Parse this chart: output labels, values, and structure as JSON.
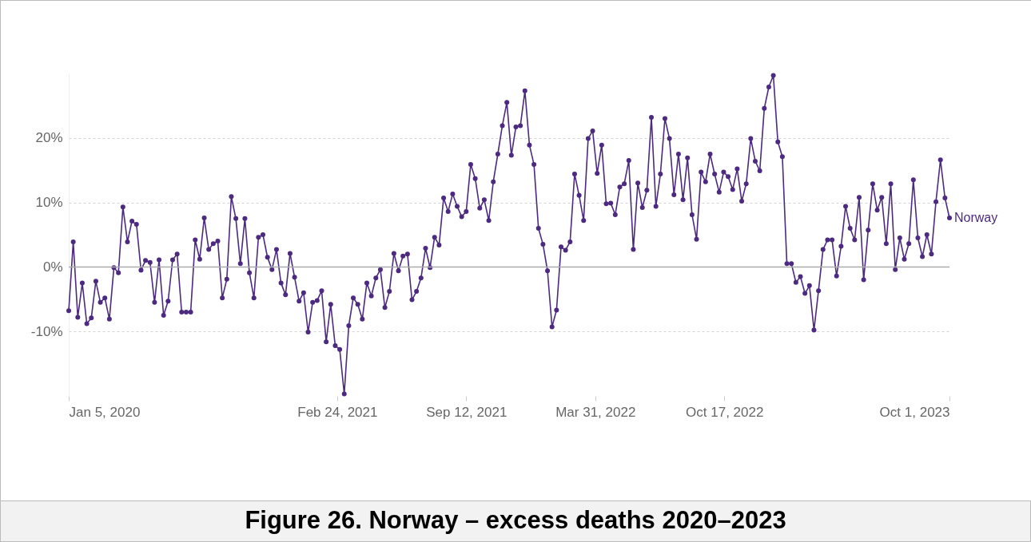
{
  "chart_data": {
    "type": "line",
    "title": "Figure 26. Norway – excess deaths 2020–2023",
    "x": [
      "2020-01-05",
      "2020-01-12",
      "2020-01-19",
      "2020-01-26",
      "2020-02-02",
      "2020-02-09",
      "2020-02-16",
      "2020-02-23",
      "2020-03-01",
      "2020-03-08",
      "2020-03-15",
      "2020-03-22",
      "2020-03-29",
      "2020-04-05",
      "2020-04-12",
      "2020-04-19",
      "2020-04-26",
      "2020-05-03",
      "2020-05-10",
      "2020-05-17",
      "2020-05-24",
      "2020-05-31",
      "2020-06-07",
      "2020-06-14",
      "2020-06-21",
      "2020-06-28",
      "2020-07-05",
      "2020-07-12",
      "2020-07-19",
      "2020-07-26",
      "2020-08-02",
      "2020-08-09",
      "2020-08-16",
      "2020-08-23",
      "2020-08-30",
      "2020-09-06",
      "2020-09-13",
      "2020-09-20",
      "2020-09-27",
      "2020-10-04",
      "2020-10-11",
      "2020-10-18",
      "2020-10-25",
      "2020-11-01",
      "2020-11-08",
      "2020-11-15",
      "2020-11-22",
      "2020-11-29",
      "2020-12-06",
      "2020-12-13",
      "2020-12-20",
      "2020-12-27",
      "2021-01-03",
      "2021-01-10",
      "2021-01-17",
      "2021-01-24",
      "2021-01-31",
      "2021-02-07",
      "2021-02-14",
      "2021-02-21",
      "2021-02-28",
      "2021-03-07",
      "2021-03-14",
      "2021-03-21",
      "2021-03-28",
      "2021-04-04",
      "2021-04-11",
      "2021-04-18",
      "2021-04-25",
      "2021-05-02",
      "2021-05-09",
      "2021-05-16",
      "2021-05-23",
      "2021-05-30",
      "2021-06-06",
      "2021-06-13",
      "2021-06-20",
      "2021-06-27",
      "2021-07-04",
      "2021-07-11",
      "2021-07-18",
      "2021-07-25",
      "2021-08-01",
      "2021-08-08",
      "2021-08-15",
      "2021-08-22",
      "2021-08-29",
      "2021-09-05",
      "2021-09-12",
      "2021-09-19",
      "2021-09-26",
      "2021-10-03",
      "2021-10-10",
      "2021-10-17",
      "2021-10-24",
      "2021-10-31",
      "2021-11-07",
      "2021-11-14",
      "2021-11-21",
      "2021-11-28",
      "2021-12-05",
      "2021-12-12",
      "2021-12-19",
      "2021-12-26",
      "2022-01-02",
      "2022-01-09",
      "2022-01-16",
      "2022-01-23",
      "2022-01-30",
      "2022-02-06",
      "2022-02-13",
      "2022-02-20",
      "2022-02-27",
      "2022-03-06",
      "2022-03-13",
      "2022-03-20",
      "2022-03-27",
      "2022-04-03",
      "2022-04-10",
      "2022-04-17",
      "2022-04-24",
      "2022-05-01",
      "2022-05-08",
      "2022-05-15",
      "2022-05-22",
      "2022-05-29",
      "2022-06-05",
      "2022-06-12",
      "2022-06-19",
      "2022-06-26",
      "2022-07-03",
      "2022-07-10",
      "2022-07-17",
      "2022-07-24",
      "2022-07-31",
      "2022-08-07",
      "2022-08-14",
      "2022-08-21",
      "2022-08-28",
      "2022-09-04",
      "2022-09-11",
      "2022-09-18",
      "2022-09-25",
      "2022-10-02",
      "2022-10-09",
      "2022-10-16",
      "2022-10-23",
      "2022-10-30",
      "2022-11-06",
      "2022-11-13",
      "2022-11-20",
      "2022-11-27",
      "2022-12-04",
      "2022-12-11",
      "2022-12-18",
      "2022-12-25",
      "2023-01-01",
      "2023-01-08",
      "2023-01-15",
      "2023-01-22",
      "2023-01-29",
      "2023-02-05",
      "2023-02-12",
      "2023-02-19",
      "2023-02-26",
      "2023-03-05",
      "2023-03-12",
      "2023-03-19",
      "2023-03-26",
      "2023-04-02",
      "2023-04-09",
      "2023-04-16",
      "2023-04-23",
      "2023-04-30",
      "2023-05-07",
      "2023-05-14",
      "2023-05-21",
      "2023-05-28",
      "2023-06-04",
      "2023-06-11",
      "2023-06-18",
      "2023-06-25",
      "2023-07-02",
      "2023-07-09",
      "2023-07-16",
      "2023-07-23",
      "2023-07-30",
      "2023-08-06",
      "2023-08-13",
      "2023-08-20",
      "2023-08-27",
      "2023-09-03",
      "2023-09-10",
      "2023-09-17",
      "2023-09-24",
      "2023-10-01"
    ],
    "series": [
      {
        "name": "Norway",
        "color": "#4b2a80",
        "values": [
          -6.8,
          3.9,
          -7.8,
          -2.5,
          -8.8,
          -7.9,
          -2.2,
          -5.5,
          -4.8,
          -8.1,
          -0.1,
          -0.9,
          9.3,
          3.9,
          7.1,
          6.6,
          -0.5,
          1.0,
          0.7,
          -5.5,
          1.1,
          -7.5,
          -5.3,
          1.1,
          2.0,
          -7.0,
          -7.0,
          -7.0,
          4.2,
          1.2,
          7.6,
          2.7,
          3.6,
          4.0,
          -4.8,
          -1.9,
          10.9,
          7.5,
          0.5,
          7.5,
          -0.9,
          -4.8,
          4.6,
          5.0,
          1.5,
          -0.4,
          2.7,
          -2.5,
          -4.3,
          2.1,
          -1.6,
          -5.3,
          -4.0,
          -10.1,
          -5.5,
          -5.2,
          -3.7,
          -11.6,
          -5.8,
          -12.2,
          -12.8,
          -19.7,
          -9.1,
          -4.8,
          -5.8,
          -8.1,
          -2.5,
          -4.5,
          -1.7,
          -0.4,
          -6.3,
          -3.8,
          2.1,
          -0.6,
          1.7,
          2.0,
          -5.1,
          -3.8,
          -1.7,
          2.9,
          -0.1,
          4.6,
          3.4,
          10.7,
          8.6,
          11.3,
          9.4,
          7.8,
          8.6,
          15.9,
          13.7,
          9.1,
          10.4,
          7.2,
          13.2,
          17.5,
          21.9,
          25.5,
          17.3,
          21.7,
          21.9,
          27.3,
          18.9,
          15.9,
          6.0,
          3.5,
          -0.6,
          -9.3,
          -6.7,
          3.1,
          2.6,
          3.9,
          14.4,
          11.1,
          7.2,
          19.9,
          21.1,
          14.5,
          18.9,
          9.8,
          9.9,
          8.1,
          12.4,
          12.9,
          16.5,
          2.7,
          13.0,
          9.2,
          11.9,
          23.2,
          9.4,
          14.4,
          23.0,
          19.9,
          11.2,
          17.5,
          10.4,
          16.9,
          8.1,
          4.3,
          14.7,
          13.2,
          17.5,
          14.4,
          11.6,
          14.7,
          14.0,
          12.0,
          15.2,
          10.2,
          12.9,
          19.9,
          16.4,
          14.9,
          24.6,
          27.9,
          29.7,
          19.4,
          17.1,
          0.5,
          0.5,
          -2.4,
          -1.5,
          -4.1,
          -2.9,
          -9.8,
          -3.7,
          2.7,
          4.2,
          4.2,
          -1.4,
          3.2,
          9.4,
          6.0,
          4.2,
          10.8,
          -2.0,
          5.7,
          12.9,
          8.8,
          10.8,
          3.6,
          12.9,
          -0.4,
          4.5,
          1.2,
          3.6,
          13.5,
          4.5,
          1.6,
          5.0,
          2.0,
          10.1,
          16.6,
          10.7,
          7.6
        ]
      }
    ],
    "xlim": [
      "2020-01-05",
      "2023-10-01"
    ],
    "xticks": [
      {
        "value": "2020-01-05",
        "label": "Jan 5, 2020"
      },
      {
        "value": "2021-02-24",
        "label": "Feb 24, 2021"
      },
      {
        "value": "2021-09-12",
        "label": "Sep 12, 2021"
      },
      {
        "value": "2022-03-31",
        "label": "Mar 31, 2022"
      },
      {
        "value": "2022-10-17",
        "label": "Oct 17, 2022"
      },
      {
        "value": "2023-10-01",
        "label": "Oct 1, 2023"
      }
    ],
    "ylim": [
      -20,
      30
    ],
    "ref_lines": [
      {
        "axis": "y",
        "value": 0,
        "color": "#aaaaaa",
        "line_style": "solid"
      }
    ],
    "yticks": [
      {
        "value": -10,
        "label": "-10%"
      },
      {
        "value": 0,
        "label": "0%"
      },
      {
        "value": 10,
        "label": "10%"
      },
      {
        "value": 20,
        "label": "20%"
      }
    ],
    "grid": "y",
    "marker": "circle",
    "line_style": "solid"
  }
}
